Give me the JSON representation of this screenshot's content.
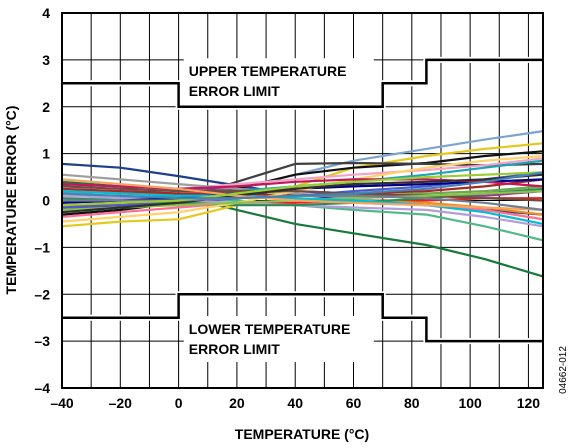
{
  "chart_data": {
    "type": "line",
    "title": "",
    "xlabel": "TEMPERATURE (°C)",
    "ylabel": "TEMPERATURE ERROR (°C)",
    "xlim": [
      -40,
      125
    ],
    "ylim": [
      -4,
      4
    ],
    "grid": true,
    "x_ticks": [
      -40,
      -20,
      0,
      20,
      40,
      60,
      80,
      100,
      120
    ],
    "x_tick_labels": [
      "–40",
      "–20",
      "0",
      "20",
      "40",
      "60",
      "80",
      "100",
      "120"
    ],
    "y_ticks": [
      -4,
      -3,
      -2,
      -1,
      0,
      1,
      2,
      3,
      4
    ],
    "y_tick_labels": [
      "–4",
      "–3",
      "–2",
      "–1",
      "0",
      "1",
      "2",
      "3",
      "4"
    ],
    "limits": [
      {
        "label_lines": [
          "UPPER TEMPERATURE",
          "ERROR LIMIT"
        ],
        "color": "#000000",
        "points": [
          [
            -40,
            2.5
          ],
          [
            0,
            2.5
          ],
          [
            0,
            2
          ],
          [
            70,
            2
          ],
          [
            70,
            2.5
          ],
          [
            85,
            2.5
          ],
          [
            85,
            3
          ],
          [
            125,
            3
          ]
        ]
      },
      {
        "label_lines": [
          "LOWER TEMPERATURE",
          "ERROR LIMIT"
        ],
        "color": "#000000",
        "points": [
          [
            -40,
            -2.5
          ],
          [
            0,
            -2.5
          ],
          [
            0,
            -2
          ],
          [
            70,
            -2
          ],
          [
            70,
            -2.5
          ],
          [
            85,
            -2.5
          ],
          [
            85,
            -3
          ],
          [
            125,
            -3
          ]
        ]
      }
    ],
    "x": [
      -40,
      -20,
      0,
      20,
      40,
      60,
      85,
      105,
      125
    ],
    "series": [
      {
        "color": "#1f3f8c",
        "values": [
          0.78,
          0.7,
          0.52,
          0.32,
          0.13,
          0.02,
          -0.1,
          -0.2,
          -0.3
        ]
      },
      {
        "color": "#177a3a",
        "values": [
          0.4,
          0.3,
          0.1,
          -0.2,
          -0.5,
          -0.7,
          -0.95,
          -1.25,
          -1.62
        ]
      },
      {
        "color": "#7da4cf",
        "values": [
          -0.25,
          -0.15,
          0.0,
          0.25,
          0.55,
          0.85,
          1.1,
          1.3,
          1.48
        ]
      },
      {
        "color": "#e5c81e",
        "values": [
          -0.55,
          -0.45,
          -0.4,
          -0.1,
          0.3,
          0.7,
          0.95,
          1.1,
          1.22
        ]
      },
      {
        "color": "#111111",
        "values": [
          -0.3,
          -0.2,
          -0.05,
          0.25,
          0.55,
          0.7,
          0.8,
          0.95,
          1.05
        ]
      },
      {
        "color": "#3f3f3f",
        "values": [
          -0.2,
          -0.1,
          0.0,
          0.4,
          0.78,
          0.8,
          0.78,
          0.75,
          0.78
        ]
      },
      {
        "color": "#f2a3c6",
        "values": [
          0.15,
          0.2,
          0.25,
          0.35,
          0.45,
          0.55,
          0.65,
          0.75,
          0.9
        ]
      },
      {
        "color": "#52b888",
        "values": [
          0.1,
          0.1,
          0.05,
          0.0,
          -0.1,
          -0.2,
          -0.3,
          -0.55,
          -0.85
        ]
      },
      {
        "color": "#e4231f",
        "values": [
          -0.1,
          -0.1,
          -0.05,
          -0.05,
          -0.05,
          0.0,
          0.0,
          0.05,
          0.05
        ]
      },
      {
        "color": "#f08a21",
        "values": [
          0.2,
          0.18,
          0.15,
          0.1,
          0.05,
          0.0,
          -0.05,
          -0.15,
          -0.3
        ]
      },
      {
        "color": "#8e3b8e",
        "values": [
          0.35,
          0.3,
          0.25,
          0.25,
          0.2,
          0.15,
          0.1,
          0.1,
          0.2
        ]
      },
      {
        "color": "#9e9e9e",
        "values": [
          0.55,
          0.45,
          0.35,
          0.25,
          0.15,
          0.05,
          -0.1,
          -0.2,
          -0.4
        ]
      },
      {
        "color": "#1aa6b7",
        "values": [
          0.0,
          0.05,
          0.1,
          0.2,
          0.3,
          0.4,
          0.55,
          0.7,
          0.85
        ]
      },
      {
        "color": "#4d5ac9",
        "values": [
          -0.15,
          -0.1,
          -0.05,
          0.05,
          0.1,
          0.2,
          0.3,
          0.45,
          0.6
        ]
      },
      {
        "color": "#a52a2a",
        "values": [
          0.25,
          0.2,
          0.15,
          0.15,
          0.1,
          0.15,
          0.2,
          0.3,
          0.45
        ]
      },
      {
        "color": "#6fa84a",
        "values": [
          -0.05,
          0.0,
          0.0,
          0.05,
          0.1,
          0.1,
          0.15,
          0.2,
          0.3
        ]
      },
      {
        "color": "#b39ddb",
        "values": [
          0.1,
          0.05,
          0.0,
          -0.05,
          -0.1,
          -0.15,
          -0.2,
          -0.35,
          -0.55
        ]
      },
      {
        "color": "#ff6f91",
        "values": [
          -0.35,
          -0.25,
          -0.15,
          -0.05,
          0.0,
          -0.05,
          -0.1,
          -0.2,
          -0.4
        ]
      },
      {
        "color": "#2e8b57",
        "values": [
          0.05,
          0.0,
          -0.05,
          -0.1,
          -0.1,
          -0.05,
          0.05,
          0.15,
          0.25
        ]
      },
      {
        "color": "#00008b",
        "values": [
          -0.05,
          0.0,
          0.05,
          0.15,
          0.25,
          0.3,
          0.35,
          0.4,
          0.45
        ]
      },
      {
        "color": "#ffd166",
        "values": [
          -0.45,
          -0.35,
          -0.25,
          -0.05,
          0.2,
          0.45,
          0.7,
          0.85,
          0.95
        ]
      },
      {
        "color": "#6d4c41",
        "values": [
          0.3,
          0.25,
          0.2,
          0.2,
          0.2,
          0.15,
          0.1,
          0.05,
          0.0
        ]
      },
      {
        "color": "#c2185b",
        "values": [
          0.35,
          0.3,
          0.25,
          0.3,
          0.4,
          0.45,
          0.45,
          0.4,
          0.3
        ]
      },
      {
        "color": "#8bc34a",
        "values": [
          -0.2,
          -0.15,
          -0.1,
          -0.05,
          0.0,
          0.05,
          0.1,
          0.15,
          0.2
        ]
      },
      {
        "color": "#00bcd4",
        "values": [
          0.2,
          0.15,
          0.1,
          0.1,
          0.05,
          0.0,
          -0.1,
          -0.25,
          -0.5
        ]
      },
      {
        "color": "#303030",
        "values": [
          -0.25,
          -0.15,
          -0.05,
          0.1,
          0.25,
          0.35,
          0.4,
          0.45,
          0.55
        ]
      },
      {
        "color": "#f4a460",
        "values": [
          0.45,
          0.35,
          0.25,
          0.1,
          0.0,
          -0.05,
          -0.1,
          -0.15,
          -0.2
        ]
      },
      {
        "color": "#708090",
        "values": [
          0.0,
          0.0,
          0.0,
          0.05,
          0.1,
          0.1,
          0.05,
          -0.05,
          -0.2
        ]
      },
      {
        "color": "#9acd32",
        "values": [
          -0.1,
          -0.05,
          0.0,
          0.15,
          0.3,
          0.4,
          0.5,
          0.55,
          0.6
        ]
      },
      {
        "color": "#4682b4",
        "values": [
          0.15,
          0.1,
          0.05,
          0.05,
          0.1,
          0.15,
          0.25,
          0.4,
          0.6
        ]
      }
    ]
  },
  "figure_id": "04662-012"
}
